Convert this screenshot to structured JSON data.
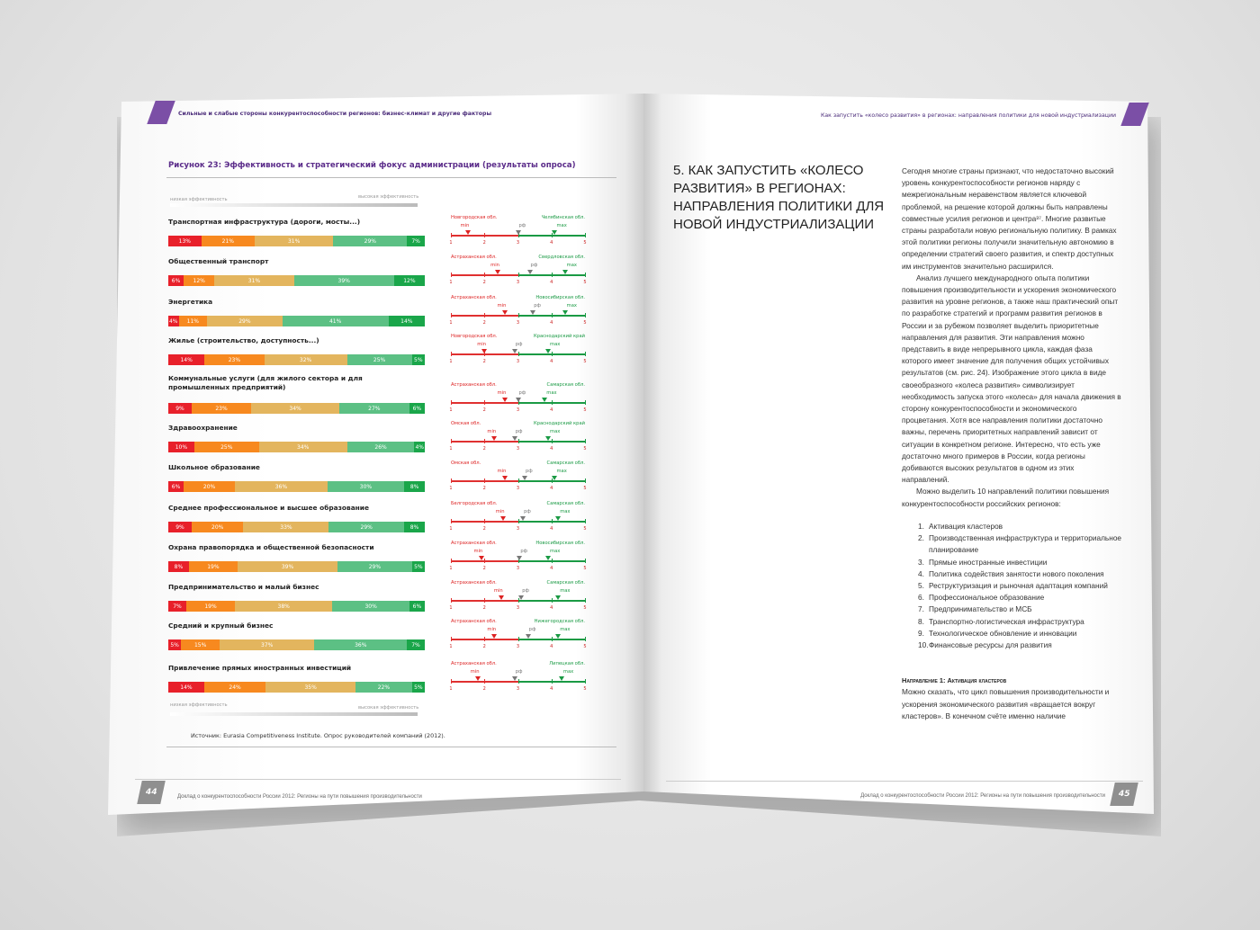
{
  "left_page": {
    "running_head": "Сильные и слабые стороны конкурентоспособности регионов: бизнес-климат и другие факторы",
    "figure_title": "Рисунок 23: Эффективность и стратегический фокус администрации (результаты опроса)",
    "low_label": "низкая эффективность",
    "high_label": "высокая эффективность",
    "source": "Источник: Eurasia Competitiveness Institute. Опрос руководителей компаний (2012).",
    "page_number": "44",
    "footer": "Доклад о конкурентоспособности России 2012: Регионы на пути повышения производительности"
  },
  "colors": {
    "red": "#e8202a",
    "orange": "#f7891f",
    "tan": "#e3b55e",
    "lightgreen": "#5cc084",
    "green": "#1aa64a",
    "purple": "#7b4fa6"
  },
  "chart_data": [
    {
      "type": "bar",
      "stacked": true,
      "title": "Рисунок 23: Эффективность и стратегический фокус администрации (результаты опроса)",
      "scale_labels": [
        "низкая эффективность",
        "высокая эффективность"
      ],
      "categories": [
        "Транспортная инфраструктура (дороги, мосты...)",
        "Общественный транспорт",
        "Энергетика",
        "Жилье (строительство, доступность...)",
        "Коммунальные услуги (для жилого сектора и для промышленных предприятий)",
        "Здравоохранение",
        "Школьное образование",
        "Среднее профессиональное и высшее образование",
        "Охрана правопорядка и общественной безопасности",
        "Предпринимательство и малый бизнес",
        "Средний и крупный бизнес",
        "Привлечение прямых иностранных инвестиций"
      ],
      "values_percent": [
        [
          13,
          21,
          31,
          29,
          7
        ],
        [
          6,
          12,
          31,
          39,
          12
        ],
        [
          4,
          11,
          29,
          41,
          14
        ],
        [
          14,
          23,
          32,
          25,
          5
        ],
        [
          9,
          23,
          34,
          27,
          6
        ],
        [
          10,
          25,
          34,
          26,
          4
        ],
        [
          6,
          20,
          36,
          30,
          8
        ],
        [
          9,
          20,
          33,
          29,
          8
        ],
        [
          8,
          19,
          39,
          29,
          5
        ],
        [
          7,
          19,
          38,
          30,
          6
        ],
        [
          5,
          15,
          37,
          36,
          7
        ],
        [
          14,
          24,
          35,
          22,
          5
        ]
      ]
    },
    {
      "type": "scatter",
      "description_axis": "scale 1–5",
      "ticks": [
        "1",
        "2",
        "3",
        "4",
        "5"
      ],
      "xlim": [
        1,
        5
      ],
      "marker_labels": {
        "min": "min",
        "rf": "рф",
        "max": "max"
      },
      "rows": [
        {
          "min_region": "Новгородская обл.",
          "max_region": "Челябинская обл.",
          "min": 1.5,
          "rf": 3.0,
          "max": 4.1
        },
        {
          "min_region": "Астраханская обл.",
          "max_region": "Свердловская обл.",
          "min": 2.4,
          "rf": 3.35,
          "max": 4.4
        },
        {
          "min_region": "Астраханская обл.",
          "max_region": "Новосибирская обл.",
          "min": 2.6,
          "rf": 3.45,
          "max": 4.4
        },
        {
          "min_region": "Новгородская обл.",
          "max_region": "Краснодарский край",
          "min": 2.0,
          "rf": 2.9,
          "max": 3.9
        },
        {
          "min_region": "Астраханская обл.",
          "max_region": "Самарская обл.",
          "min": 2.6,
          "rf": 3.0,
          "max": 3.8
        },
        {
          "min_region": "Омская обл.",
          "max_region": "Краснодарский край",
          "min": 2.3,
          "rf": 2.9,
          "max": 3.9
        },
        {
          "min_region": "Омская обл.",
          "max_region": "Самарская обл.",
          "min": 2.6,
          "rf": 3.2,
          "max": 4.1
        },
        {
          "min_region": "Белгородская обл.",
          "max_region": "Самарская обл.",
          "min": 2.55,
          "rf": 3.15,
          "max": 4.2
        },
        {
          "min_region": "Астраханская обл.",
          "max_region": "Новосибирская обл.",
          "min": 1.9,
          "rf": 3.05,
          "max": 3.9
        },
        {
          "min_region": "Астраханская обл.",
          "max_region": "Самарская обл.",
          "min": 2.5,
          "rf": 3.1,
          "max": 4.2
        },
        {
          "min_region": "Астраханская обл.",
          "max_region": "Нижегородская обл.",
          "min": 2.3,
          "rf": 3.3,
          "max": 4.2
        },
        {
          "min_region": "Астраханская обл.",
          "max_region": "Липецкая обл.",
          "min": 1.8,
          "rf": 2.9,
          "max": 4.3
        }
      ]
    }
  ],
  "right_page": {
    "running_head": "Как запустить «колесо развития» в регионах: направления политики для новой индустриализации",
    "chapter_title": "5. Как запустить «колесо развития» в регионах: направления политики для новой индустриализации",
    "paragraphs": [
      "Сегодня многие страны признают, что недостаточно высокий уровень конкурентоспособности регионов наряду с межрегиональным неравенством является ключевой проблемой, на решение которой должны быть направлены совместные усилия регионов и центра³⁷. Многие развитые страны разработали новую региональную политику. В рамках этой политики регионы получили значительную автономию в определении стратегий своего развития, и спектр доступных им инструментов значительно расширился.",
      "Анализ лучшего международного опыта политики повышения производительности и ускорения экономического развития на уровне регионов, а также наш практический опыт по разработке стратегий и программ развития регионов в России и за рубежом позволяет выделить приоритетные направления для развития. Эти направления можно представить в виде непрерывного цикла, каждая фаза которого имеет значение для получения общих устойчивых результатов (см. рис. 24). Изображение этого цикла в виде своеобразного «колеса развития» символизирует необходимость запуска этого «колеса» для начала движения в сторону конкурентоспособности и экономического процветания. Хотя все направления политики достаточно важны, перечень приоритетных направлений зависит от ситуации в конкретном регионе. Интересно, что есть уже достаточно много примеров в России, когда регионы добиваются высоких результатов в одном из этих направлений.",
      "Можно выделить 10 направлений политики повышения конкурентоспособности российских регионов:"
    ],
    "list": [
      {
        "n": "1.",
        "text": "Активация кластеров"
      },
      {
        "n": "2.",
        "text": "Производственная инфраструктура и территориальное планирование"
      },
      {
        "n": "3.",
        "text": "Прямые иностранные инвестиции"
      },
      {
        "n": "4.",
        "text": "Политика содействия занятости нового поколения"
      },
      {
        "n": "5.",
        "text": "Реструктуризация и рыночная адаптация компаний"
      },
      {
        "n": "6.",
        "text": "Профессиональное образование"
      },
      {
        "n": "7.",
        "text": "Предпринимательство и МСБ"
      },
      {
        "n": "8.",
        "text": "Транспортно-логистическая инфраструктура"
      },
      {
        "n": "9.",
        "text": "Технологическое обновление и инновации"
      },
      {
        "n": "10.",
        "text": "Финансовые ресурсы для развития"
      }
    ],
    "direction_heading": "Направление 1: Активация кластеров",
    "direction_text": "Можно сказать, что цикл повышения производительности и ускорения экономического развития «вращается вокруг кластеров». В конечном счёте именно наличие",
    "page_number": "45",
    "footer": "Доклад о конкурентоспособности России 2012: Регионы на пути повышения производительности"
  }
}
